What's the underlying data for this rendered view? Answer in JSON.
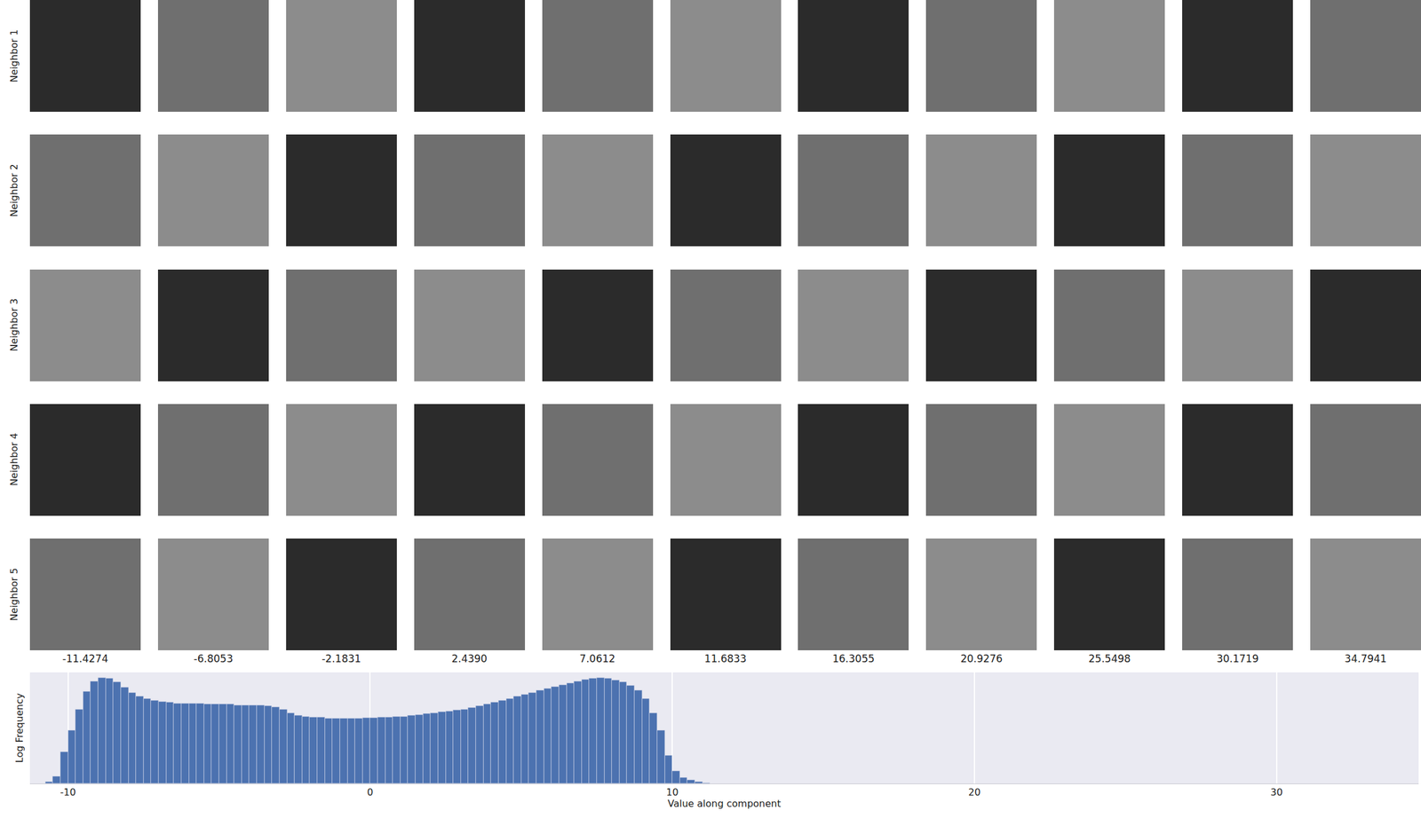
{
  "chart_data": {
    "type": "histogram",
    "xlabel": "Value along component",
    "ylabel": "Log Frequency",
    "bins": [
      -10.75,
      -10.5,
      -10.25,
      -10.0,
      -9.75,
      -9.5,
      -9.25,
      -9.0,
      -8.75,
      -8.5,
      -8.25,
      -8.0,
      -7.75,
      -7.5,
      -7.25,
      -7.0,
      -6.75,
      -6.5,
      -6.25,
      -6.0,
      -5.75,
      -5.5,
      -5.25,
      -5.0,
      -4.75,
      -4.5,
      -4.25,
      -4.0,
      -3.75,
      -3.5,
      -3.25,
      -3.0,
      -2.75,
      -2.5,
      -2.25,
      -2.0,
      -1.75,
      -1.5,
      -1.25,
      -1.0,
      -0.75,
      -0.5,
      -0.25,
      0.0,
      0.25,
      0.5,
      0.75,
      1.0,
      1.25,
      1.5,
      1.75,
      2.0,
      2.25,
      2.5,
      2.75,
      3.0,
      3.25,
      3.5,
      3.75,
      4.0,
      4.25,
      4.5,
      4.75,
      5.0,
      5.25,
      5.5,
      5.75,
      6.0,
      6.25,
      6.5,
      6.75,
      7.0,
      7.25,
      7.5,
      7.75,
      8.0,
      8.25,
      8.5,
      8.75,
      9.0,
      9.25,
      9.5,
      9.75,
      10.0,
      10.25,
      10.5,
      10.75,
      11.0,
      11.25
    ],
    "values": [
      0.1,
      0.4,
      1.8,
      3.0,
      4.2,
      5.2,
      5.8,
      6.0,
      5.95,
      5.75,
      5.45,
      5.15,
      4.95,
      4.8,
      4.7,
      4.65,
      4.6,
      4.55,
      4.55,
      4.55,
      4.55,
      4.5,
      4.5,
      4.5,
      4.5,
      4.45,
      4.45,
      4.45,
      4.45,
      4.4,
      4.35,
      4.2,
      4.0,
      3.85,
      3.8,
      3.75,
      3.75,
      3.7,
      3.7,
      3.7,
      3.7,
      3.7,
      3.72,
      3.72,
      3.75,
      3.75,
      3.78,
      3.8,
      3.85,
      3.9,
      3.95,
      4.0,
      4.05,
      4.1,
      4.15,
      4.2,
      4.3,
      4.4,
      4.5,
      4.6,
      4.7,
      4.8,
      4.95,
      5.05,
      5.15,
      5.3,
      5.4,
      5.5,
      5.6,
      5.7,
      5.8,
      5.9,
      5.95,
      6.0,
      5.95,
      5.85,
      5.75,
      5.55,
      5.3,
      4.8,
      4.0,
      3.0,
      1.6,
      0.7,
      0.35,
      0.2,
      0.1,
      0.05
    ],
    "color": "#4C72B0",
    "xlim": [
      -11.26,
      34.7
    ],
    "xticks": [
      -10,
      0,
      10,
      20,
      30
    ],
    "ylim": [
      0,
      6.3
    ],
    "grid": true,
    "tick_labels": "x"
  },
  "image_grid": {
    "row_labels": [
      "Neighbor 1",
      "Neighbor 2",
      "Neighbor 3",
      "Neighbor 4",
      "Neighbor 5"
    ],
    "column_labels": [
      "-11.4274",
      "-6.8053",
      "-2.1831",
      "2.4390",
      "7.0612",
      "11.6833",
      "16.3055",
      "20.9276",
      "25.5498",
      "30.1719",
      "34.7941"
    ]
  }
}
